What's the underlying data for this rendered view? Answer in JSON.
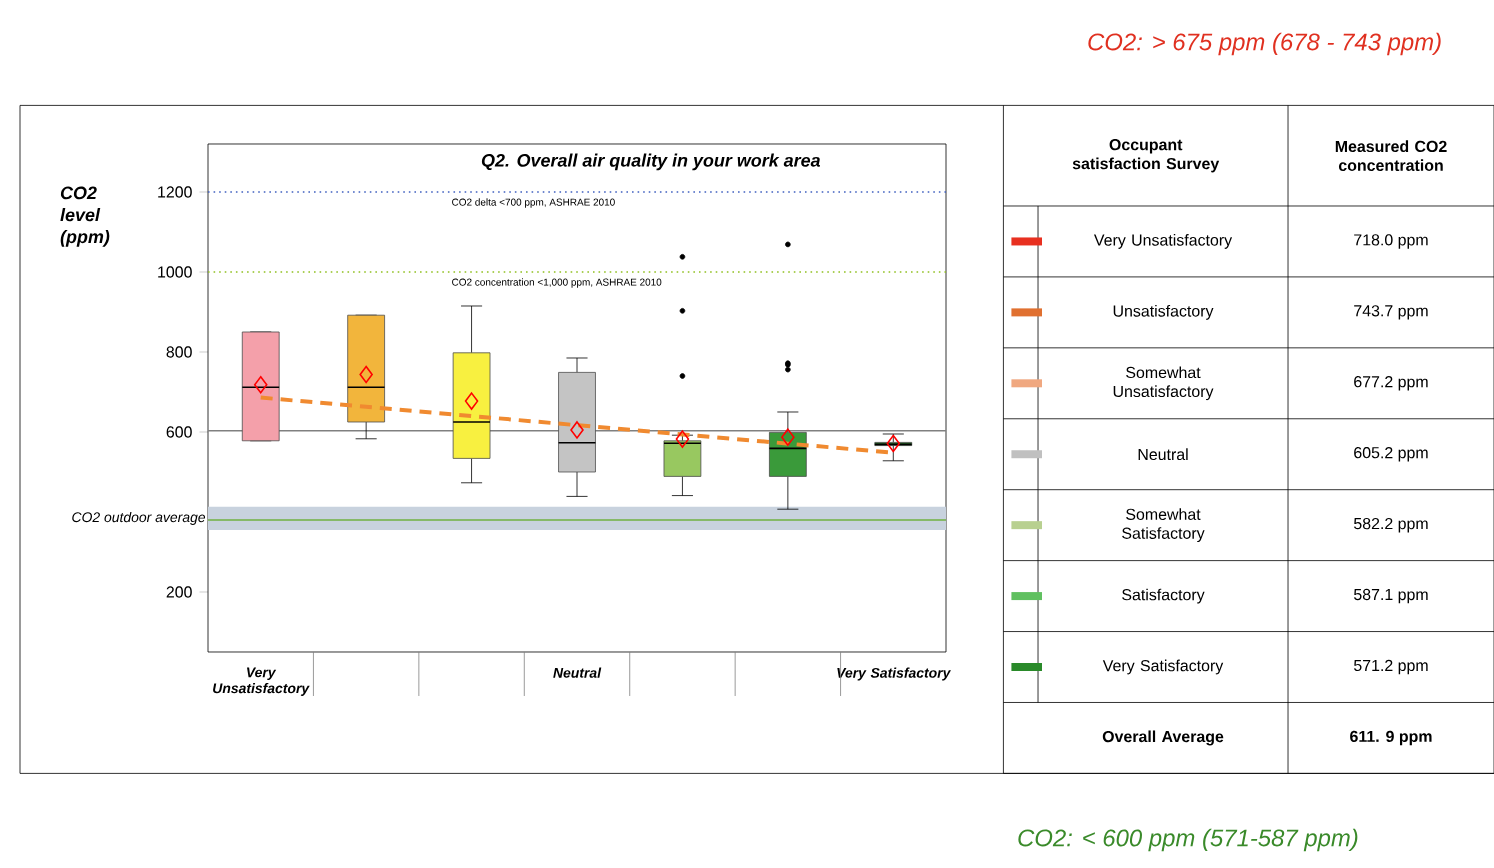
{
  "chart_data": [
    {
      "type": "box",
      "title": "Q2. Overall air quality in your work area",
      "ylabel": "CO2 level (ppm)",
      "categories": [
        "Very Unsatisfactory",
        null,
        null,
        "Neutral",
        null,
        null,
        "Very Satisfactory"
      ],
      "ylim": [
        50,
        1320
      ],
      "yticks": [
        200,
        600,
        800,
        1000,
        1200
      ],
      "series": [
        {
          "type": "box",
          "colors": [
            "#f4a0aa",
            "#f2b53c",
            "#f8f040",
            "#c4c4c4",
            "#98c860",
            "#3a9a3a",
            "#2a7a2a"
          ],
          "boxes": [
            {
              "low": 578,
              "q1": 578,
              "median": 712,
              "q3": 850,
              "high": 850,
              "mean": 718.0
            },
            {
              "low": 583,
              "q1": 625,
              "median": 712,
              "q3": 892,
              "high": 892,
              "mean": 743.7
            },
            {
              "low": 473,
              "q1": 534,
              "median": 625,
              "q3": 798,
              "high": 915,
              "mean": 677.2
            },
            {
              "low": 439,
              "q1": 500,
              "median": 573,
              "q3": 749,
              "high": 785,
              "mean": 605.2
            },
            {
              "low": 441,
              "q1": 489,
              "median": 572,
              "q3": 578,
              "high": 592,
              "mean": 582.2,
              "outliers": [
                1038,
                903,
                740
              ]
            },
            {
              "low": 407,
              "q1": 489,
              "median": 559,
              "q3": 599,
              "high": 650,
              "mean": 587.1,
              "outliers": [
                1069,
                772,
                768,
                756
              ]
            },
            {
              "low": 528,
              "q1": 566,
              "median": 569,
              "q3": 574,
              "high": 595,
              "mean": 571.2
            }
          ]
        },
        {
          "type": "line",
          "values": [
            686,
            663,
            640,
            617,
            594,
            571,
            548
          ],
          "color": "#f08a30",
          "line_style": "dashed",
          "marker": "none"
        }
      ],
      "ref_lines": [
        {
          "axis": "y",
          "value": 1200,
          "label": "CO2 delta <700 ppm, ASHRAE 2010",
          "color": "#4060c0",
          "line_style": "dotted"
        },
        {
          "axis": "y",
          "value": 1000,
          "label": "CO2 concentration <1,000 ppm, ASHRAE 2010",
          "color": "#90c020",
          "line_style": "dotted"
        },
        {
          "axis": "y",
          "value": 603,
          "color": "#808080",
          "line_style": "solid"
        },
        {
          "axis": "y",
          "value": 380,
          "color": "#70b040",
          "line_style": "solid"
        }
      ],
      "bands": [
        {
          "axis": "y",
          "from": 355,
          "to": 413,
          "label": "CO2 outdoor average",
          "color": "#c8d2de"
        }
      ]
    },
    {
      "type": "other",
      "categories": [
        "Very Unsatisfactory",
        "Unsatisfactory",
        "Somewhat Unsatisfactory",
        "Neutral",
        "Somewhat Satisfactory",
        "Satisfactory",
        "Very Satisfactory",
        "Overall Average"
      ],
      "value_labels": [
        "718.0 ppm",
        "743.7 ppm",
        "677.2 ppm",
        "605.2 ppm",
        "582.2 ppm",
        "587.1 ppm",
        "571.2 ppm",
        "611. 9 ppm"
      ],
      "colors": [
        "#e83020",
        "#e07030",
        "#f0a880",
        "#c0c0c0",
        "#b8d090",
        "#60c060",
        "#2a8a2a",
        null
      ],
      "annotations": [
        "Occupant satisfaction Survey",
        "Measured CO2 concentration",
        "CO2: > 675 ppm (678 - 743 ppm)",
        "CO2: < 600 ppm (571-587 ppm)"
      ]
    }
  ]
}
